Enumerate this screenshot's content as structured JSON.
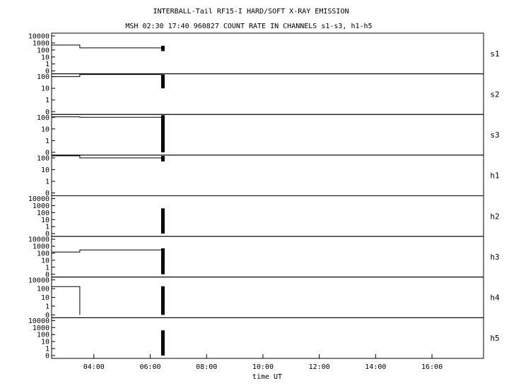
{
  "chart_data": {
    "type": "line",
    "title": "INTERBALL-Tail RF15-I HARD/SOFT X-RAY EMISSION",
    "subtitle": "MSH 02:30 17:40 960827  COUNT RATE IN CHANNELS s1-s3, h1-h5",
    "xlabel": "time UT",
    "x_unit": "hours UT",
    "xlim": [
      2.5,
      17.83
    ],
    "x_ticks": [
      {
        "value": 4,
        "label": "04:00"
      },
      {
        "value": 6,
        "label": "06:00"
      },
      {
        "value": 8,
        "label": "08:00"
      },
      {
        "value": 10,
        "label": "10:00"
      },
      {
        "value": 12,
        "label": "12:00"
      },
      {
        "value": 14,
        "label": "14:00"
      },
      {
        "value": 16,
        "label": "16:00"
      }
    ],
    "yscale": "log",
    "panels": [
      {
        "name": "s1",
        "y_ticks": [
          "10000",
          "1000",
          "100",
          "10",
          "1",
          "0"
        ],
        "segments": [
          [
            2.5,
            500
          ],
          [
            3.5,
            500
          ],
          [
            3.5,
            200
          ],
          [
            6.4,
            200
          ]
        ],
        "burst": {
          "x": 6.45,
          "top": 400,
          "bottom": 70
        }
      },
      {
        "name": "s2",
        "y_ticks": [
          "100",
          "10",
          "1",
          "0"
        ],
        "segments": [
          [
            2.5,
            100
          ],
          [
            3.5,
            100
          ],
          [
            3.5,
            200
          ],
          [
            6.4,
            200
          ]
        ],
        "burst": {
          "x": 6.45,
          "top": 250,
          "bottom": 10
        }
      },
      {
        "name": "s3",
        "y_ticks": [
          "100",
          "10",
          "1",
          "0"
        ],
        "segments": [
          [
            2.5,
            110
          ],
          [
            3.5,
            110
          ],
          [
            3.5,
            100
          ],
          [
            6.4,
            100
          ]
        ],
        "burst": {
          "x": 6.45,
          "top": 150,
          "bottom": 0
        }
      },
      {
        "name": "h1",
        "y_ticks": [
          "100",
          "10",
          "1",
          "0"
        ],
        "segments": [
          [
            2.5,
            250
          ],
          [
            3.5,
            250
          ],
          [
            3.5,
            100
          ],
          [
            6.4,
            100
          ]
        ],
        "burst": {
          "x": 6.45,
          "top": 200,
          "bottom": 50
        }
      },
      {
        "name": "h2",
        "y_ticks": [
          "10000",
          "1000",
          "100",
          "10",
          "1",
          "0"
        ],
        "segments": [],
        "burst": {
          "x": 6.45,
          "top": 400,
          "bottom": 0
        }
      },
      {
        "name": "h3",
        "y_ticks": [
          "10000",
          "1000",
          "100",
          "10",
          "1",
          "0"
        ],
        "segments": [
          [
            2.5,
            150
          ],
          [
            3.5,
            150
          ],
          [
            3.5,
            300
          ],
          [
            6.4,
            300
          ]
        ],
        "burst": {
          "x": 6.45,
          "top": 500,
          "bottom": 0
        }
      },
      {
        "name": "h4",
        "y_ticks": [
          "10000",
          "100",
          "10",
          "1",
          "0"
        ],
        "segments": [
          [
            2.5,
            300
          ],
          [
            3.5,
            300
          ],
          [
            3.5,
            0
          ]
        ],
        "burst": {
          "x": 6.45,
          "top": 350,
          "bottom": 0
        }
      },
      {
        "name": "h5",
        "y_ticks": [
          "10000",
          "1000",
          "100",
          "10",
          "1",
          "0"
        ],
        "segments": [],
        "burst": {
          "x": 6.45,
          "top": 400,
          "bottom": 0
        }
      }
    ]
  }
}
